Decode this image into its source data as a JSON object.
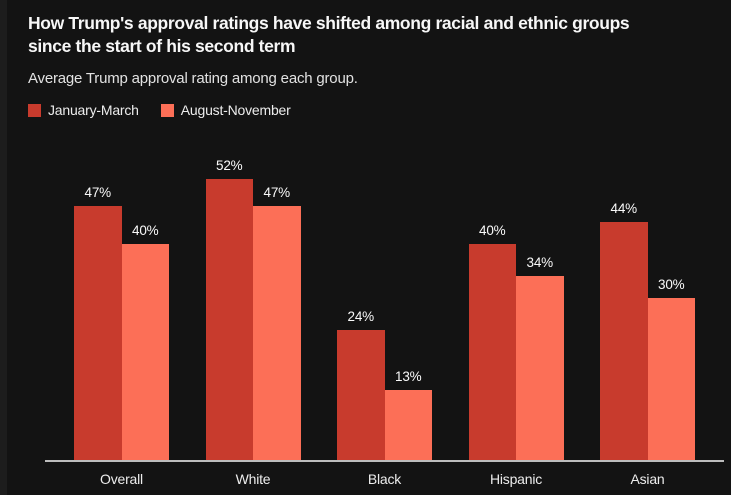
{
  "header": {
    "title": "How Trump's approval ratings have shifted among racial and ethnic groups since the start of his second term",
    "subtitle": "Average Trump approval rating among each group."
  },
  "legend": {
    "items": [
      {
        "label": "January-March",
        "color": "#c83b2d"
      },
      {
        "label": "August-November",
        "color": "#fc6f57"
      }
    ]
  },
  "chart_data": {
    "type": "bar",
    "title": "How Trump's approval ratings have shifted among racial and ethnic groups since the start of his second term",
    "subtitle": "Average Trump approval rating among each group.",
    "categories": [
      "Overall",
      "White",
      "Black",
      "Hispanic",
      "Asian"
    ],
    "series": [
      {
        "name": "January-March",
        "color": "#c83b2d",
        "values": [
          47,
          52,
          24,
          40,
          44
        ]
      },
      {
        "name": "August-November",
        "color": "#fc6f57",
        "values": [
          40,
          47,
          13,
          34,
          30
        ]
      }
    ],
    "value_suffix": "%",
    "data_labels": true,
    "xlabel": "",
    "ylabel": "",
    "ylim": [
      0,
      61
    ],
    "grid": false,
    "legend_position": "top-left",
    "background_color": "#131313",
    "axis_line_color": "#bdbdbd",
    "label_color": "#fafafa"
  }
}
